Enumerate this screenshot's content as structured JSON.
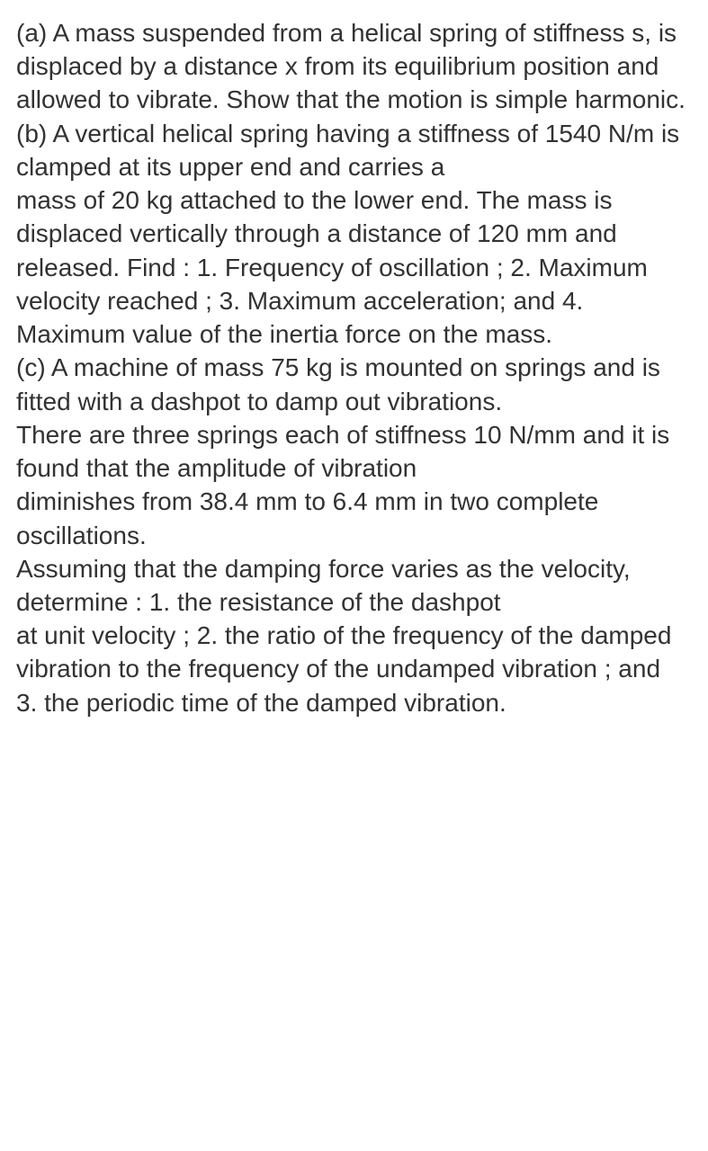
{
  "document": {
    "text_color": "#323232",
    "background_color": "#ffffff",
    "font_size": 28,
    "line_height": 1.33,
    "paragraphs": [
      "(a) A mass suspended from a helical spring of stiffness s, is displaced by a distance x from its equilibrium position and allowed to vibrate. Show that the motion is simple harmonic.",
      "(b) A vertical helical spring having a stiffness of 1540 N/m is clamped at its upper end and carries a",
      "mass of 20 kg attached to the lower end. The mass is displaced vertically through a distance of 120 mm and released. Find : 1. Frequency of oscillation ; 2. Maximum velocity reached ; 3. Maximum acceleration; and 4. Maximum value of the inertia force on the mass.",
      "(c) A machine of mass 75 kg is mounted on springs and is fitted with a dashpot to damp out vibrations.",
      "There are three springs each of stiffness 10 N/mm and it is found that the amplitude of vibration",
      "diminishes from 38.4 mm to 6.4 mm in two complete oscillations.",
      "Assuming that the damping force varies as the velocity, determine : 1. the resistance of the dashpot",
      "at unit velocity ; 2. the ratio of the frequency of the damped vibration to the frequency of the undamped vibration ; and 3. the periodic time of the damped vibration."
    ]
  }
}
